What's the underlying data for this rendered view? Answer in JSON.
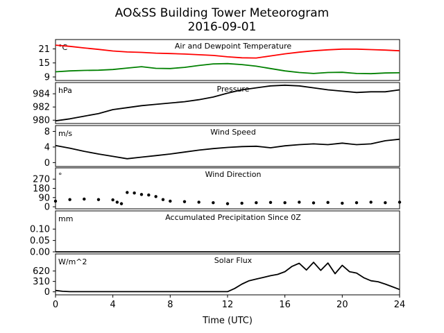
{
  "chart_data": {
    "type": "line",
    "title": "AO&SS Building Tower Meteorogram",
    "subtitle": "2016-09-01",
    "xlabel": "Time (UTC)",
    "xlim": [
      0,
      24
    ],
    "xticks": [
      0,
      4,
      8,
      12,
      16,
      20,
      24
    ],
    "grid": false,
    "panels": [
      {
        "title": "Air and Dewpoint Temperature",
        "unit": "°C",
        "ylim": [
          7.5,
          25
        ],
        "yticks": [
          9,
          15,
          21
        ],
        "style": "line",
        "series": [
          {
            "color": "#ff0000",
            "x": [
              0,
              1,
              2,
              3,
              4,
              5,
              6,
              7,
              8,
              9,
              10,
              11,
              12,
              13,
              14,
              15,
              16,
              17,
              18,
              19,
              20,
              21,
              22,
              23,
              24
            ],
            "y": [
              22.6,
              22.1,
              21.4,
              20.8,
              20.1,
              19.7,
              19.5,
              19.2,
              19.0,
              18.8,
              18.5,
              18.2,
              17.6,
              17.2,
              17.1,
              18.0,
              18.9,
              19.6,
              20.2,
              20.6,
              20.9,
              20.9,
              20.7,
              20.5,
              20.2
            ]
          },
          {
            "color": "#008000",
            "x": [
              0,
              1,
              2,
              3,
              4,
              5,
              6,
              7,
              8,
              9,
              10,
              11,
              12,
              13,
              14,
              15,
              16,
              17,
              18,
              19,
              20,
              21,
              22,
              23,
              24
            ],
            "y": [
              11.2,
              11.6,
              11.8,
              11.9,
              12.2,
              12.8,
              13.4,
              12.7,
              12.6,
              13.1,
              13.9,
              14.6,
              14.7,
              14.3,
              13.6,
              12.6,
              11.6,
              10.9,
              10.5,
              10.9,
              11.0,
              10.5,
              10.4,
              10.7,
              10.8
            ]
          }
        ]
      },
      {
        "title": "Pressure",
        "unit": "hPa",
        "ylim": [
          979.5,
          985.7
        ],
        "yticks": [
          980,
          982,
          984
        ],
        "style": "line",
        "series": [
          {
            "color": "#000000",
            "x": [
              0,
              1,
              2,
              3,
              4,
              5,
              6,
              7,
              8,
              9,
              10,
              11,
              12,
              13,
              14,
              15,
              16,
              17,
              18,
              19,
              20,
              21,
              22,
              23,
              24
            ],
            "y": [
              979.9,
              980.2,
              980.6,
              981.0,
              981.6,
              981.9,
              982.2,
              982.4,
              982.6,
              982.8,
              983.1,
              983.5,
              984.1,
              984.6,
              984.9,
              985.2,
              985.3,
              985.2,
              984.9,
              984.6,
              984.4,
              984.2,
              984.3,
              984.3,
              984.6
            ]
          }
        ]
      },
      {
        "title": "Wind Speed",
        "unit": "m/s",
        "ylim": [
          -1,
          9.5
        ],
        "yticks": [
          0,
          4,
          8
        ],
        "style": "line",
        "series": [
          {
            "color": "#000000",
            "x": [
              0,
              1,
              2,
              3,
              4,
              5,
              6,
              7,
              8,
              9,
              10,
              11,
              12,
              13,
              14,
              15,
              16,
              17,
              18,
              19,
              20,
              21,
              22,
              23,
              24
            ],
            "y": [
              4.4,
              3.7,
              2.9,
              2.2,
              1.6,
              1.0,
              1.4,
              1.8,
              2.2,
              2.7,
              3.2,
              3.6,
              3.9,
              4.1,
              4.2,
              3.8,
              4.3,
              4.6,
              4.8,
              4.6,
              5.0,
              4.6,
              4.8,
              5.6,
              6.0
            ]
          }
        ]
      },
      {
        "title": "Wind Direction",
        "unit": "°",
        "ylim": [
          -20,
          380
        ],
        "yticks": [
          0,
          90,
          180,
          270
        ],
        "style": "scatter",
        "series": [
          {
            "color": "#000000",
            "x": [
              0,
              1,
              2,
              3,
              4,
              4.3,
              4.6,
              5,
              5.5,
              6,
              6.5,
              7,
              7.5,
              8,
              9,
              10,
              11,
              12,
              13,
              14,
              15,
              16,
              17,
              18,
              19,
              20,
              21,
              22,
              23,
              24
            ],
            "y": [
              55,
              70,
              75,
              70,
              68,
              45,
              30,
              140,
              135,
              120,
              115,
              100,
              70,
              55,
              50,
              45,
              40,
              30,
              35,
              40,
              42,
              40,
              45,
              38,
              42,
              35,
              40,
              45,
              40,
              45
            ]
          }
        ]
      },
      {
        "title": "Accumulated Precipitation Since 0Z",
        "unit": "mm",
        "ylim": [
          0,
          0.18
        ],
        "yticks": [
          0.0,
          0.05,
          0.1
        ],
        "ytick_labels": [
          "0.00",
          "0.05",
          "0.10"
        ],
        "style": "line",
        "series": [
          {
            "color": "#000000",
            "x": [
              0,
              24
            ],
            "y": [
              0,
              0
            ]
          }
        ]
      },
      {
        "title": "Solar Flux",
        "unit": "W/m^2",
        "ylim": [
          -90,
          1130
        ],
        "yticks": [
          0,
          310,
          620
        ],
        "style": "line",
        "series": [
          {
            "color": "#000000",
            "x": [
              0,
              0.5,
              1,
              12,
              12.5,
              13,
              13.5,
              14,
              14.5,
              15,
              15.5,
              16,
              16.5,
              17,
              17.5,
              18,
              18.5,
              19,
              19.5,
              20,
              20.5,
              21,
              21.5,
              22,
              22.5,
              23,
              23.5,
              24
            ],
            "y": [
              40,
              15,
              5,
              5,
              100,
              230,
              330,
              380,
              430,
              480,
              520,
              600,
              760,
              850,
              650,
              880,
              640,
              860,
              540,
              790,
              600,
              560,
              420,
              330,
              300,
              230,
              150,
              70
            ]
          }
        ]
      }
    ]
  }
}
